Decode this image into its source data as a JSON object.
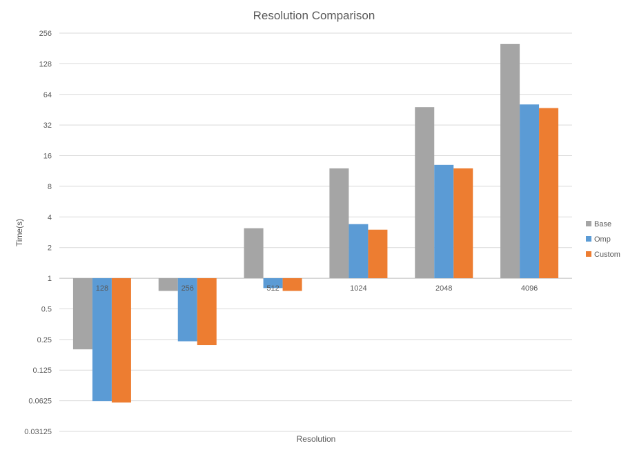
{
  "chart_data": {
    "type": "bar",
    "title": "Resolution Comparison",
    "xlabel": "Resolution",
    "ylabel": "Time(s)",
    "y_scale": "log2",
    "baseline": 1,
    "ylim": [
      0.03125,
      256
    ],
    "y_ticks": [
      0.03125,
      0.0625,
      0.125,
      0.25,
      0.5,
      1,
      2,
      4,
      8,
      16,
      32,
      64,
      128,
      256
    ],
    "y_tick_labels": [
      "0.03125",
      "0.0625",
      "0.125",
      "0.25",
      "0.5",
      "1",
      "2",
      "4",
      "8",
      "16",
      "32",
      "64",
      "128",
      "256"
    ],
    "categories": [
      "128",
      "256",
      "512",
      "1024",
      "2048",
      "4096"
    ],
    "series": [
      {
        "name": "Base",
        "color": "#a5a5a5",
        "values": [
          0.2,
          0.75,
          3.1,
          12.0,
          48.0,
          200.0
        ]
      },
      {
        "name": "Omp",
        "color": "#5b9bd5",
        "values": [
          0.062,
          0.24,
          0.8,
          3.4,
          13.0,
          51.0
        ]
      },
      {
        "name": "Custom",
        "color": "#ed7d31",
        "values": [
          0.06,
          0.22,
          0.75,
          3.0,
          12.0,
          47.0
        ]
      }
    ],
    "grid": true,
    "legend_position": "right"
  }
}
